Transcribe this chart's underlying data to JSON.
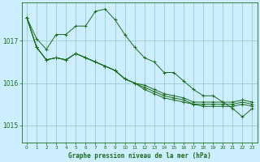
{
  "background_color": "#cceeff",
  "grid_color": "#99cccc",
  "line_color": "#1a6b1a",
  "xlabel": "Graphe pression niveau de la mer (hPa)",
  "xlim": [
    -0.5,
    23.5
  ],
  "ylim": [
    1014.6,
    1017.9
  ],
  "yticks": [
    1015,
    1016,
    1017
  ],
  "xticks": [
    0,
    1,
    2,
    3,
    4,
    5,
    6,
    7,
    8,
    9,
    10,
    11,
    12,
    13,
    14,
    15,
    16,
    17,
    18,
    19,
    20,
    21,
    22,
    23
  ],
  "series": [
    [
      1017.55,
      1017.05,
      1016.8,
      1017.15,
      1017.15,
      1017.35,
      1017.35,
      1017.7,
      1017.75,
      1017.5,
      1017.15,
      1016.85,
      1016.6,
      1016.5,
      1016.25,
      1016.25,
      1016.05,
      1015.85,
      1015.7,
      1015.7,
      1015.55,
      1015.4,
      1015.2,
      1015.4
    ],
    [
      1017.55,
      1016.85,
      1016.55,
      1016.6,
      1016.55,
      1016.7,
      1016.6,
      1016.5,
      1016.4,
      1016.3,
      1016.1,
      1016.0,
      1015.85,
      1015.75,
      1015.65,
      1015.6,
      1015.55,
      1015.5,
      1015.45,
      1015.45,
      1015.45,
      1015.45,
      1015.5,
      1015.45
    ],
    [
      1017.55,
      1016.85,
      1016.55,
      1016.6,
      1016.55,
      1016.7,
      1016.6,
      1016.5,
      1016.4,
      1016.3,
      1016.1,
      1016.0,
      1015.9,
      1015.8,
      1015.7,
      1015.65,
      1015.6,
      1015.5,
      1015.5,
      1015.5,
      1015.5,
      1015.5,
      1015.55,
      1015.5
    ],
    [
      1017.55,
      1016.85,
      1016.55,
      1016.6,
      1016.55,
      1016.7,
      1016.6,
      1016.5,
      1016.4,
      1016.3,
      1016.1,
      1016.0,
      1015.95,
      1015.85,
      1015.75,
      1015.7,
      1015.65,
      1015.55,
      1015.55,
      1015.55,
      1015.55,
      1015.55,
      1015.6,
      1015.55
    ]
  ]
}
